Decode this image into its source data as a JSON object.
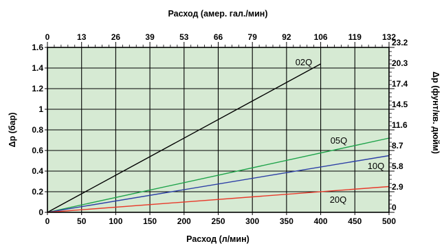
{
  "chart_data": {
    "type": "line",
    "title_top": "Расход (амер. гал./мин)",
    "xlabel": "Расход (л/мин)",
    "ylabel_left": "Δp (бар)",
    "ylabel_right": "Δp (фунт/кв. дюйм)",
    "xlim": [
      0,
      500
    ],
    "ylim": [
      0,
      1.6
    ],
    "grid": true,
    "background_color": "#d6ead3",
    "x_ticks": [
      "0",
      "50",
      "100",
      "150",
      "200",
      "250",
      "300",
      "350",
      "400",
      "450",
      "500"
    ],
    "x_tick_values": [
      0,
      50,
      100,
      150,
      200,
      250,
      300,
      350,
      400,
      450,
      500
    ],
    "y_left_ticks": [
      "0",
      "0.2",
      "0.4",
      "0.6",
      "0.8",
      "1",
      "1.2",
      "1.4",
      "1.6"
    ],
    "y_left_tick_values": [
      0,
      0.2,
      0.4,
      0.6,
      0.8,
      1.0,
      1.2,
      1.4,
      1.6
    ],
    "top_ticks": [
      "0",
      "13",
      "26",
      "39",
      "53",
      "66",
      "79",
      "92",
      "106",
      "119",
      "132"
    ],
    "right_ticks": [
      "0",
      "2.9",
      "5.8",
      "8.7",
      "11.6",
      "14.5",
      "17.4",
      "20.3",
      "23.2"
    ],
    "series": [
      {
        "name": "02Q",
        "color": "#000000",
        "x": [
          0,
          400
        ],
        "y": [
          0,
          1.44
        ]
      },
      {
        "name": "05Q",
        "color": "#1ea34a",
        "x": [
          0,
          500
        ],
        "y": [
          0,
          0.72
        ]
      },
      {
        "name": "10Q",
        "color": "#2c3fa6",
        "x": [
          0,
          500
        ],
        "y": [
          0,
          0.55
        ]
      },
      {
        "name": "20Q",
        "color": "#e8392a",
        "x": [
          0,
          500
        ],
        "y": [
          0,
          0.25
        ]
      }
    ]
  }
}
